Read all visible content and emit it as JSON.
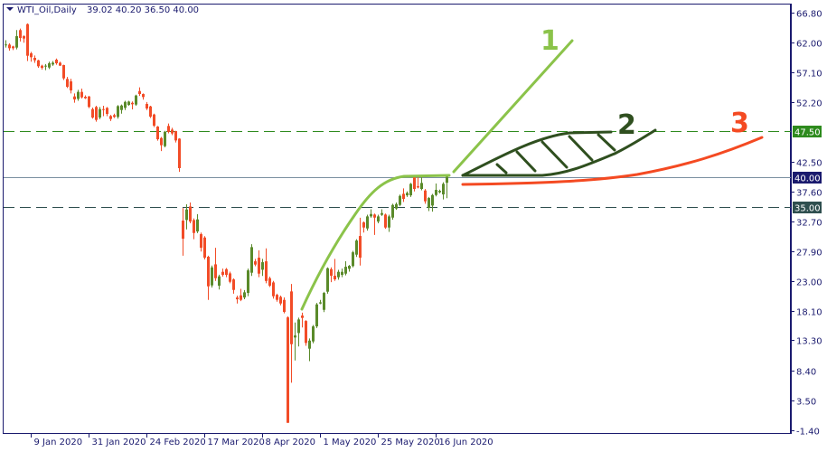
{
  "header": {
    "symbol": "WTI_Oil,Daily",
    "ohlc": "39.02 40.20 36.50 40.00"
  },
  "colors": {
    "bull": "#5a8a2a",
    "bear": "#f24c27",
    "axis": "#1a1a6e",
    "line1": "#8bc34a",
    "line2": "#2f4f1f",
    "line3": "#f44a22",
    "level_47_5": "#2e8b1e",
    "level_35": "#2f4f4f",
    "level_40": "#7a8fa0"
  },
  "annotations": {
    "label1": "1",
    "label2": "2",
    "label3": "3"
  },
  "chart_data": {
    "type": "candlestick",
    "ylim": [
      -1.4,
      66.8
    ],
    "y_ticks": [
      "66.80",
      "62.00",
      "57.10",
      "52.20",
      "42.50",
      "37.60",
      "32.70",
      "27.90",
      "23.00",
      "18.10",
      "13.30",
      "8.40",
      "3.50",
      "-1.40"
    ],
    "x_ticks": [
      "9 Jan 2020",
      "31 Jan 2020",
      "24 Feb 2020",
      "17 Mar 2020",
      "8 Apr 2020",
      "1 May 2020",
      "25 May 2020",
      "16 Jun 2020"
    ],
    "levels": [
      {
        "price": 47.5,
        "label": "47.50",
        "style": "dashed"
      },
      {
        "price": 40.0,
        "label": "40.00",
        "style": "solid"
      },
      {
        "price": 35.0,
        "label": "35.00",
        "style": "dashed"
      }
    ],
    "ohlc": [
      [
        61.5,
        62.3,
        61.1,
        61.6
      ],
      [
        61.58,
        61.8,
        60.6,
        60.99
      ],
      [
        61.29,
        61.4,
        60.7,
        60.99
      ],
      [
        61.09,
        63.95,
        60.8,
        62.96
      ],
      [
        63.95,
        64.2,
        62.1,
        62.67
      ],
      [
        62.96,
        63.1,
        61.9,
        62.57
      ],
      [
        64.93,
        65.05,
        58.9,
        59.76
      ],
      [
        60.16,
        60.4,
        58.8,
        59.52
      ],
      [
        59.42,
        59.8,
        58.6,
        59.02
      ],
      [
        59.02,
        59.1,
        57.8,
        58.04
      ],
      [
        58.14,
        58.3,
        57.5,
        57.79
      ],
      [
        58.1,
        58.4,
        57.4,
        58.14
      ],
      [
        57.84,
        58.8,
        57.6,
        58.53
      ],
      [
        58.33,
        58.9,
        58.1,
        58.63
      ],
      [
        59.12,
        59.3,
        58.3,
        58.53
      ],
      [
        58.63,
        58.8,
        58.1,
        58.14
      ],
      [
        58.24,
        58.3,
        55.8,
        56.07
      ],
      [
        55.97,
        56.3,
        54.5,
        54.69
      ],
      [
        55.58,
        56.0,
        53.6,
        54.1
      ],
      [
        53.12,
        53.6,
        52.1,
        52.63
      ],
      [
        52.72,
        54.2,
        52.4,
        53.86
      ],
      [
        53.86,
        54.4,
        52.8,
        52.97
      ],
      [
        53.07,
        53.3,
        52.7,
        52.82
      ],
      [
        53.12,
        53.2,
        51.2,
        51.4
      ],
      [
        51.05,
        51.3,
        49.5,
        49.67
      ],
      [
        51.4,
        51.6,
        49.0,
        49.28
      ],
      [
        49.67,
        51.4,
        49.4,
        51.05
      ],
      [
        51.05,
        51.6,
        49.9,
        50.9
      ],
      [
        51.25,
        51.4,
        49.9,
        50.26
      ],
      [
        49.92,
        50.1,
        49.1,
        49.43
      ],
      [
        50.07,
        50.3,
        49.6,
        49.77
      ],
      [
        49.77,
        51.7,
        49.5,
        51.54
      ],
      [
        50.9,
        51.8,
        50.3,
        51.64
      ],
      [
        51.25,
        52.4,
        50.9,
        52.23
      ],
      [
        51.74,
        52.4,
        51.6,
        52.28
      ],
      [
        52.08,
        52.3,
        51.0,
        51.84
      ],
      [
        51.79,
        53.4,
        51.6,
        53.27
      ],
      [
        54.0,
        54.6,
        53.2,
        53.51
      ],
      [
        53.51,
        53.6,
        52.6,
        53.02
      ],
      [
        51.89,
        52.2,
        50.9,
        51.15
      ],
      [
        51.49,
        51.6,
        49.6,
        49.82
      ],
      [
        50.17,
        50.3,
        48.1,
        48.34
      ],
      [
        48.2,
        48.3,
        45.9,
        46.13
      ],
      [
        46.33,
        46.5,
        44.2,
        45.15
      ],
      [
        45.0,
        47.5,
        44.8,
        47.36
      ],
      [
        48.3,
        48.7,
        47.1,
        47.31
      ],
      [
        47.7,
        48.0,
        46.8,
        47.07
      ],
      [
        47.46,
        47.5,
        45.6,
        45.93
      ],
      [
        46.23,
        46.3,
        40.8,
        41.41
      ],
      [
        32.84,
        34.9,
        27.1,
        29.89
      ],
      [
        32.94,
        35.5,
        31.4,
        34.66
      ],
      [
        35.15,
        35.8,
        32.4,
        32.69
      ],
      [
        32.94,
        33.2,
        29.8,
        30.82
      ],
      [
        31.07,
        33.9,
        30.8,
        33.04
      ],
      [
        30.63,
        30.9,
        27.8,
        28.41
      ],
      [
        30.08,
        30.3,
        26.5,
        26.79
      ],
      [
        26.94,
        27.1,
        19.9,
        22.11
      ],
      [
        22.26,
        25.5,
        21.9,
        25.21
      ],
      [
        25.7,
        28.4,
        23.0,
        23.44
      ],
      [
        22.21,
        24.0,
        21.6,
        23.74
      ],
      [
        24.48,
        25.0,
        23.7,
        23.98
      ],
      [
        24.92,
        25.1,
        23.6,
        23.98
      ],
      [
        24.23,
        24.5,
        22.6,
        22.85
      ],
      [
        23.24,
        23.4,
        20.9,
        21.52
      ],
      [
        20.29,
        20.6,
        19.3,
        19.99
      ],
      [
        20.64,
        21.7,
        19.7,
        19.9
      ],
      [
        20.29,
        21.5,
        20.0,
        21.13
      ],
      [
        21.03,
        25.0,
        20.5,
        24.72
      ],
      [
        24.33,
        29.0,
        23.8,
        28.51
      ],
      [
        26.2,
        26.6,
        25.4,
        25.66
      ],
      [
        26.79,
        28.0,
        23.6,
        24.18
      ],
      [
        24.82,
        26.6,
        23.8,
        26.05
      ],
      [
        26.2,
        28.3,
        22.6,
        22.98
      ],
      [
        23.44,
        23.7,
        22.0,
        22.21
      ],
      [
        22.75,
        23.0,
        20.1,
        20.49
      ],
      [
        20.73,
        20.9,
        19.6,
        19.9
      ],
      [
        20.39,
        20.6,
        19.0,
        19.31
      ],
      [
        19.9,
        20.3,
        17.7,
        17.93
      ],
      [
        17.04,
        17.2,
        -0.18,
        -0.18
      ],
      [
        21.28,
        22.5,
        6.36,
        12.66
      ],
      [
        13.75,
        16.2,
        10.0,
        14.09
      ],
      [
        14.48,
        17.0,
        12.3,
        16.7
      ],
      [
        17.34,
        17.8,
        15.4,
        16.95
      ],
      [
        16.45,
        16.6,
        12.4,
        12.86
      ],
      [
        11.93,
        13.6,
        9.9,
        13.25
      ],
      [
        13.11,
        15.8,
        12.8,
        15.57
      ],
      [
        15.57,
        19.4,
        15.3,
        19.16
      ],
      [
        19.3,
        19.9,
        19.2,
        19.5
      ],
      [
        18.27,
        21.2,
        17.9,
        21.03
      ],
      [
        21.23,
        25.2,
        20.9,
        25.07
      ],
      [
        24.92,
        25.2,
        22.8,
        23.84
      ],
      [
        23.84,
        26.6,
        23.0,
        23.25
      ],
      [
        23.59,
        24.8,
        23.2,
        24.48
      ],
      [
        23.98,
        25.0,
        23.6,
        24.48
      ],
      [
        24.18,
        26.2,
        23.9,
        25.31
      ],
      [
        24.97,
        25.6,
        24.5,
        25.46
      ],
      [
        25.41,
        27.9,
        25.2,
        27.67
      ],
      [
        27.28,
        29.8,
        26.9,
        29.59
      ],
      [
        30.33,
        33.3,
        25.5,
        26.79
      ],
      [
        32.55,
        32.7,
        30.9,
        31.71
      ],
      [
        31.56,
        33.8,
        31.2,
        33.53
      ],
      [
        33.53,
        34.7,
        33.3,
        33.92
      ],
      [
        33.83,
        34.0,
        30.5,
        33.33
      ],
      [
        32.69,
        33.8,
        32.4,
        33.53
      ],
      [
        33.78,
        34.7,
        33.6,
        34.07
      ],
      [
        33.83,
        34.0,
        31.5,
        31.71
      ],
      [
        31.71,
        33.8,
        31.0,
        33.53
      ],
      [
        33.33,
        35.6,
        33.0,
        35.4
      ],
      [
        34.81,
        35.8,
        34.6,
        35.55
      ],
      [
        35.4,
        37.1,
        35.2,
        36.88
      ],
      [
        37.22,
        38.1,
        35.9,
        36.38
      ],
      [
        36.97,
        37.6,
        36.7,
        37.37
      ],
      [
        36.97,
        39.0,
        36.7,
        38.85
      ],
      [
        40.08,
        40.3,
        37.6,
        38.01
      ],
      [
        38.45,
        40.0,
        38.1,
        38.25
      ],
      [
        38.01,
        40.0,
        37.8,
        38.99
      ],
      [
        37.76,
        38.0,
        35.6,
        35.99
      ],
      [
        34.91,
        36.7,
        34.4,
        36.53
      ],
      [
        35.3,
        37.2,
        34.3,
        37.02
      ],
      [
        37.02,
        38.9,
        36.8,
        37.86
      ],
      [
        37.47,
        37.9,
        37.3,
        37.71
      ],
      [
        37.12,
        39.1,
        36.3,
        38.85
      ],
      [
        39.02,
        40.2,
        36.5,
        40.0
      ]
    ]
  }
}
